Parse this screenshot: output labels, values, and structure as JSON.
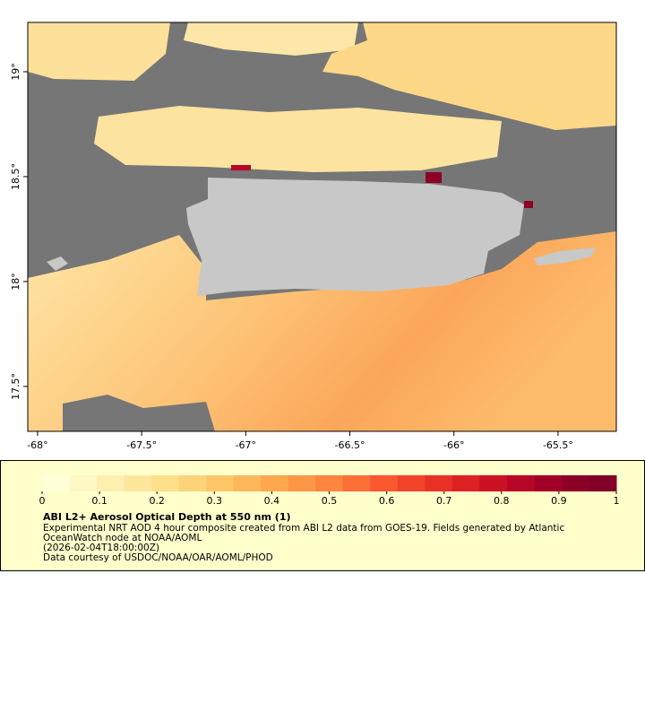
{
  "chart_data": {
    "type": "map",
    "xlim": [
      -68.047,
      -65.22
    ],
    "ylim": [
      17.286,
      19.235
    ],
    "xticks": [
      {
        "value": -68,
        "label": "-68°"
      },
      {
        "value": -67.5,
        "label": "-67.5°"
      },
      {
        "value": -67,
        "label": "-67°"
      },
      {
        "value": -66.5,
        "label": "-66.5°"
      },
      {
        "value": -66,
        "label": "-66°"
      },
      {
        "value": -65.5,
        "label": "-65.5°"
      }
    ],
    "yticks": [
      {
        "value": 17.5,
        "label": "17.5°"
      },
      {
        "value": 18,
        "label": "18°"
      },
      {
        "value": 18.5,
        "label": "18.5°"
      },
      {
        "value": 19,
        "label": "19°"
      }
    ],
    "colorbar": {
      "lim": [
        0,
        1
      ],
      "ticks": [
        0,
        0.1,
        0.2,
        0.3,
        0.4,
        0.5,
        0.6,
        0.7,
        0.8,
        0.9,
        1
      ],
      "colors": [
        "#ffffd9",
        "#fff7c4",
        "#ffefb0",
        "#fee79c",
        "#fedf8a",
        "#fed379",
        "#fec668",
        "#feb75a",
        "#fea74f",
        "#fd9646",
        "#fd853e",
        "#fc6f37",
        "#fb5830",
        "#f3432a",
        "#e93125",
        "#dc2023",
        "#cc1124",
        "#b80626",
        "#a20026",
        "#8c0026",
        "#800026"
      ]
    },
    "title": "ABI L2+ Aerosol Optical Depth at 550 nm (1)",
    "description": [
      "Experimental NRT AOD 4 hour composite created from ABI L2 data from GOES-19. Fields generated by Atlantic",
      "OceanWatch node at NOAA/AOML",
      "(2026-02-04T18:00:00Z)",
      "Data courtesy of USDOC/NOAA/OAR/AOML/PHOD"
    ]
  }
}
